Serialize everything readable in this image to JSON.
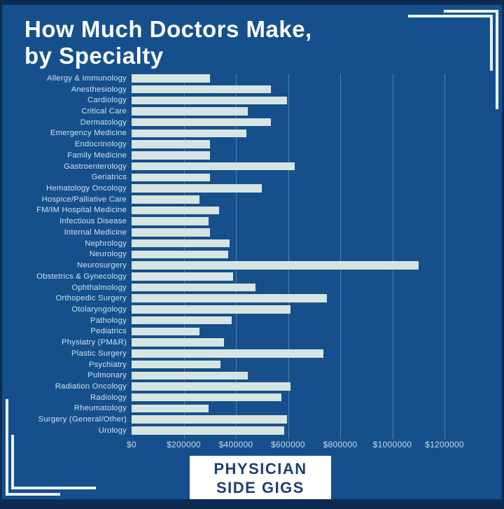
{
  "title": {
    "line1": "How Much Doctors Make,",
    "line2": "by Specialty"
  },
  "badge": {
    "line1": "PHYSICIAN",
    "line2": "SIDE GIGS"
  },
  "colors": {
    "background": "#15508d",
    "frame_border": "#0e2b53",
    "bar_fill": "#d7e5e2",
    "title_text": "#ffffff",
    "label_text": "#cfe1f1",
    "badge_text": "#1d3e72",
    "badge_background": "#ffffff",
    "gridline": "rgba(225,238,248,0.30)",
    "corner_bracket": "#e8f2f9"
  },
  "chart_data": {
    "type": "bar",
    "orientation": "horizontal",
    "title": "How Much Doctors Make, by Specialty",
    "xlabel": "",
    "ylabel": "",
    "xlim": [
      0,
      1200000
    ],
    "grid": true,
    "legend": "none",
    "x_tick_labels": [
      "$0",
      "$200000",
      "$400000",
      "$600000",
      "$800000",
      "$1000000",
      "$1200000"
    ],
    "x_tick_values": [
      0,
      200000,
      400000,
      600000,
      800000,
      1000000,
      1200000
    ],
    "categories": [
      "Allergy & Immunology",
      "Anesthesiology",
      "Cardiology",
      "Critical Care",
      "Dermatology",
      "Emergency Medicine",
      "Endocrinology",
      "Family Medicine",
      "Gastroenterology",
      "Geriatrics",
      "Hematology Oncology",
      "Hospice/Palliative Care",
      "FM/IM Hospital Medicine",
      "Infectious Disease",
      "Internal Medicine",
      "Nephrology",
      "Neurology",
      "Neurosurgery",
      "Obstetrics & Gynecology",
      "Ophthalmology",
      "Orthopedic Surgery",
      "Otolaryngology",
      "Pathology",
      "Pediatrics",
      "Physiatry (PM&R)",
      "Plastic Surgery",
      "Psychiatry",
      "Pulmonary",
      "Radiation Oncology",
      "Radiology",
      "Rheumatology",
      "Surgery (General/Other)",
      "Urology"
    ],
    "values": [
      300000,
      535000,
      595000,
      445000,
      535000,
      440000,
      300000,
      300000,
      625000,
      300000,
      500000,
      260000,
      335000,
      295000,
      300000,
      375000,
      370000,
      1100000,
      390000,
      475000,
      750000,
      610000,
      385000,
      260000,
      355000,
      735000,
      340000,
      445000,
      610000,
      575000,
      295000,
      595000,
      585000
    ]
  }
}
